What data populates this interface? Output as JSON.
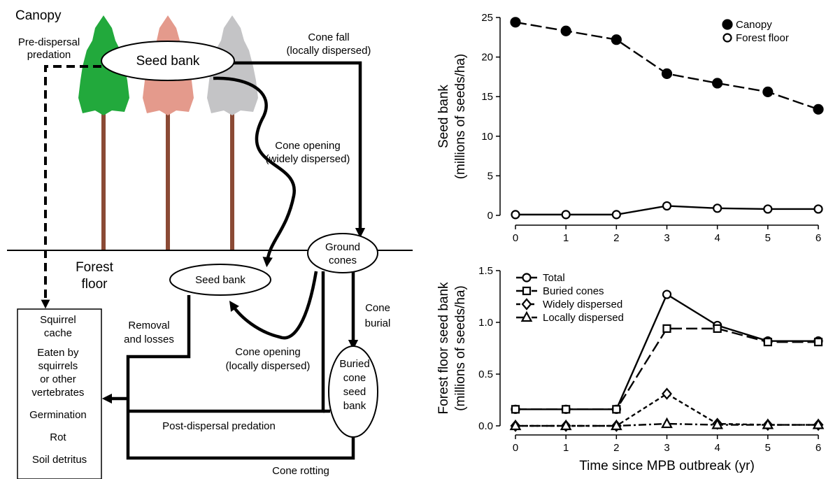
{
  "diagram": {
    "canopy": "Canopy",
    "pre_dispersal": [
      "Pre-dispersal",
      "predation"
    ],
    "canopy_seed_bank": "Seed bank",
    "cone_fall": [
      "Cone fall",
      "(locally dispersed)"
    ],
    "cone_opening_wide": [
      "Cone opening",
      "(widely dispersed)"
    ],
    "ground_cones": [
      "Ground",
      "cones"
    ],
    "forest_floor": [
      "Forest",
      "floor"
    ],
    "floor_seed_bank": "Seed bank",
    "cone_burial": [
      "Cone",
      "burial"
    ],
    "removal": [
      "Removal",
      "and losses"
    ],
    "cone_opening_local": [
      "Cone opening",
      "(locally dispersed)"
    ],
    "buried_bank": [
      "Buried",
      "cone",
      "seed",
      "bank"
    ],
    "post_dispersal": "Post-dispersal predation",
    "cone_rotting": "Cone rotting",
    "fates": [
      "Squirrel",
      "cache",
      "Eaten by",
      "squirrels",
      "or other",
      "vertebrates",
      "Germination",
      "Rot",
      "Soil detritus"
    ]
  },
  "chart_data": [
    {
      "type": "line",
      "ylabel": [
        "Seed bank",
        "(millions of seeds/ha)"
      ],
      "x": [
        0,
        1,
        2,
        3,
        4,
        5,
        6
      ],
      "xlim": [
        0,
        6
      ],
      "xticks": [
        0,
        1,
        2,
        3,
        4,
        5,
        6
      ],
      "ylim": [
        0,
        25
      ],
      "yticks": [
        0,
        5,
        10,
        15,
        20,
        25
      ],
      "legend": "upper right",
      "series": [
        {
          "name": "Canopy",
          "color": "#000000",
          "marker": "filled-circle",
          "dash": "long",
          "values": [
            24.4,
            23.3,
            22.2,
            17.9,
            16.7,
            15.6,
            13.4
          ]
        },
        {
          "name": "Forest floor",
          "color": "#000000",
          "marker": "open-circle",
          "dash": "solid",
          "values": [
            0.1,
            0.1,
            0.1,
            1.2,
            0.9,
            0.8,
            0.8
          ]
        }
      ]
    },
    {
      "type": "line",
      "ylabel": [
        "Forest floor seed bank",
        "(millions of seeds/ha)"
      ],
      "xlabel": "Time since MPB outbreak (yr)",
      "x": [
        0,
        1,
        2,
        3,
        4,
        5,
        6
      ],
      "xlim": [
        0,
        6
      ],
      "xticks": [
        0,
        1,
        2,
        3,
        4,
        5,
        6
      ],
      "ylim": [
        0,
        1.5
      ],
      "yticks": [
        {
          "value": 0,
          "label": "0.0"
        },
        0.5,
        {
          "value": 1,
          "label": "1.0"
        },
        1.5
      ],
      "legend": "upper left",
      "series": [
        {
          "name": "Total",
          "color": "#000000",
          "marker": "open-circle",
          "dash": "solid",
          "values": [
            0.16,
            0.16,
            0.16,
            1.27,
            0.97,
            0.82,
            0.82
          ]
        },
        {
          "name": "Buried cones",
          "color": "#000000",
          "marker": "square",
          "dash": "long",
          "values": [
            0.16,
            0.16,
            0.16,
            0.94,
            0.94,
            0.81,
            0.81
          ]
        },
        {
          "name": "Widely dispersed",
          "color": "#000000",
          "marker": "diamond",
          "dash": "short",
          "values": [
            0,
            0,
            0,
            0.31,
            0.02,
            0.01,
            0.01
          ]
        },
        {
          "name": "Locally dispersed",
          "color": "#000000",
          "marker": "triangle",
          "dash": "dashdot",
          "values": [
            0,
            0,
            0,
            0.02,
            0.01,
            0.01,
            0.01
          ]
        }
      ]
    }
  ]
}
